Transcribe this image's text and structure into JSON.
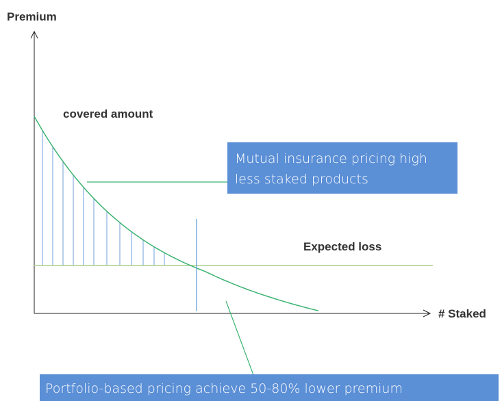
{
  "y_axis_label": "Premium",
  "x_axis_label": "# Staked",
  "annotations": {
    "covered_amount": "covered amount",
    "expected_loss": "Expected loss"
  },
  "callouts": {
    "mutual": {
      "line1": "Mutual insurance pricing high",
      "line2": "less staked products"
    },
    "portfolio": "Portfolio-based pricing achieve 50-80% lower premium"
  }
}
